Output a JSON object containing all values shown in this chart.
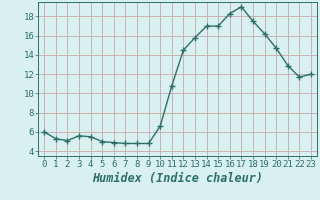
{
  "x": [
    0,
    1,
    2,
    3,
    4,
    5,
    6,
    7,
    8,
    9,
    10,
    11,
    12,
    13,
    14,
    15,
    16,
    17,
    18,
    19,
    20,
    21,
    22,
    23
  ],
  "y": [
    6.0,
    5.3,
    5.1,
    5.6,
    5.5,
    5.0,
    4.9,
    4.8,
    4.8,
    4.8,
    6.6,
    10.8,
    14.5,
    15.8,
    17.0,
    17.0,
    18.3,
    19.0,
    17.5,
    16.2,
    14.7,
    12.9,
    11.7,
    12.0
  ],
  "line_color": "#2d7068",
  "marker": "+",
  "marker_size": 4,
  "marker_linewidth": 1.0,
  "bg_color": "#d8f0f0",
  "grid_color": "#c8a8a8",
  "xlabel": "Humidex (Indice chaleur)",
  "ylim": [
    3.5,
    19.5
  ],
  "xlim": [
    -0.5,
    23.5
  ],
  "yticks": [
    4,
    6,
    8,
    10,
    12,
    14,
    16,
    18
  ],
  "xticks": [
    0,
    1,
    2,
    3,
    4,
    5,
    6,
    7,
    8,
    9,
    10,
    11,
    12,
    13,
    14,
    15,
    16,
    17,
    18,
    19,
    20,
    21,
    22,
    23
  ],
  "tick_fontsize": 6.5,
  "xlabel_fontsize": 8.5,
  "line_width": 1.0
}
